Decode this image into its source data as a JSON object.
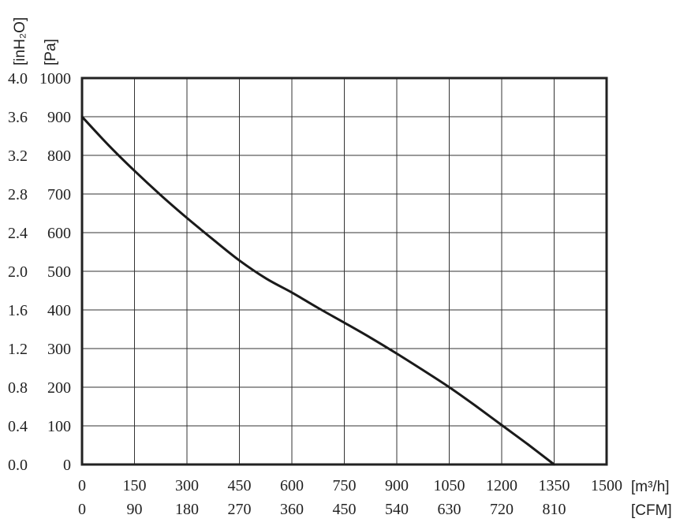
{
  "chart_data": {
    "type": "line",
    "x_axis": {
      "primary_label": "[m³/h]",
      "secondary_label": "[CFM]",
      "range": [
        0,
        1500
      ],
      "primary_ticks": [
        "0",
        "150",
        "300",
        "450",
        "600",
        "750",
        "900",
        "1050",
        "1200",
        "1350",
        "1500"
      ],
      "secondary_ticks": [
        "0",
        "90",
        "180",
        "270",
        "360",
        "450",
        "540",
        "630",
        "720",
        "810"
      ]
    },
    "y_axis": {
      "primary_label": "[Pa]",
      "secondary_label": "[inH₂O]",
      "range": [
        0,
        1000
      ],
      "primary_ticks": [
        "0",
        "100",
        "200",
        "300",
        "400",
        "500",
        "600",
        "700",
        "800",
        "900",
        "1000"
      ],
      "secondary_ticks": [
        "0.0",
        "0.4",
        "0.8",
        "1.2",
        "1.6",
        "2.0",
        "2.4",
        "2.8",
        "3.2",
        "3.6",
        "4.0"
      ]
    },
    "grid": true,
    "series": [
      {
        "x": [
          0,
          75,
          150,
          225,
          300,
          375,
          450,
          525,
          600,
          675,
          750,
          825,
          900,
          975,
          1050,
          1125,
          1200,
          1275,
          1350
        ],
        "y": [
          900,
          827,
          760,
          697,
          638,
          582,
          528,
          482,
          445,
          405,
          367,
          328,
          287,
          244,
          200,
          152,
          102,
          52,
          0
        ]
      }
    ]
  }
}
